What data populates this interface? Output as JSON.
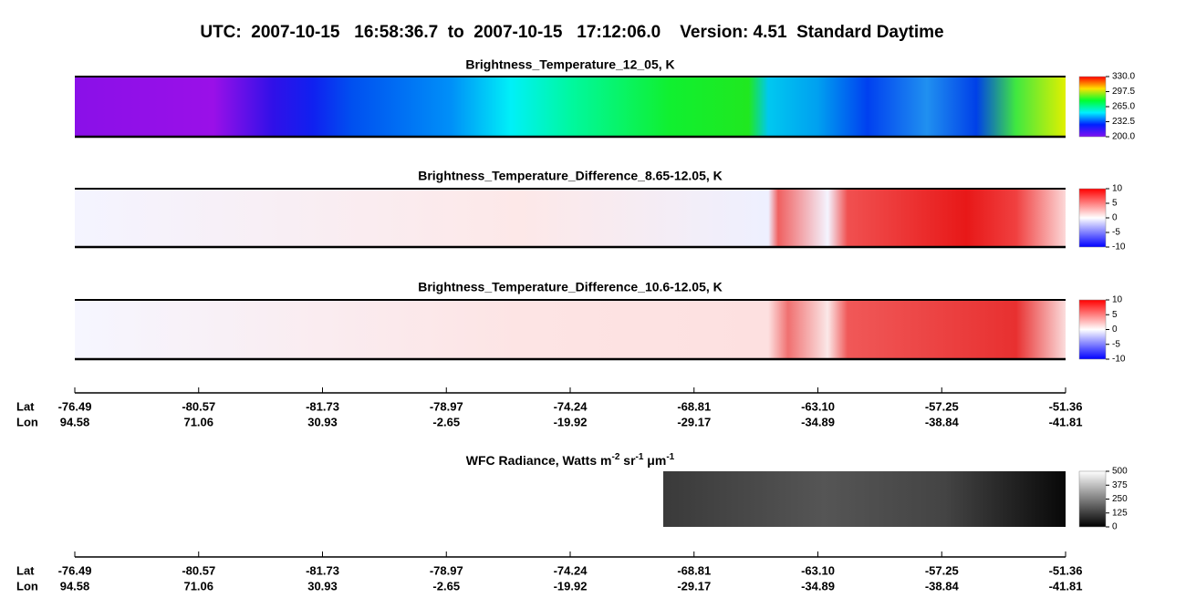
{
  "header": {
    "title": "UTC:  2007-10-15   16:58:36.7  to  2007-10-15   17:12:06.0    Version: 4.51  Standard Daytime"
  },
  "panels": [
    {
      "title": "Brightness_Temperature_12_05, K",
      "colorbar": [
        "330.0",
        "297.5",
        "265.0",
        "232.5",
        "200.0"
      ]
    },
    {
      "title": "Brightness_Temperature_Difference_8.65-12.05, K",
      "colorbar": [
        "10",
        "5",
        "0",
        "-5",
        "-10"
      ]
    },
    {
      "title": "Brightness_Temperature_Difference_10.6-12.05, K",
      "colorbar": [
        "10",
        "5",
        "0",
        "-5",
        "-10"
      ]
    },
    {
      "title": [
        "WFC Radiance, Watts m",
        "-2",
        " sr",
        "-1",
        " μm",
        "-1"
      ],
      "colorbar": [
        "500",
        "375",
        "250",
        "125",
        "0"
      ]
    }
  ],
  "axes": [
    {
      "lat_label": "Lat",
      "lon_label": "Lon",
      "lat": [
        "-76.49",
        "-80.57",
        "-81.73",
        "-78.97",
        "-74.24",
        "-68.81",
        "-63.10",
        "-57.25",
        "-51.36"
      ],
      "lon": [
        "94.58",
        "71.06",
        "30.93",
        "-2.65",
        "-19.92",
        "-29.17",
        "-34.89",
        "-38.84",
        "-41.81"
      ]
    },
    {
      "lat_label": "Lat",
      "lon_label": "Lon",
      "lat": [
        "-76.49",
        "-80.57",
        "-81.73",
        "-78.97",
        "-74.24",
        "-68.81",
        "-63.10",
        "-57.25",
        "-51.36"
      ],
      "lon": [
        "94.58",
        "71.06",
        "30.93",
        "-2.65",
        "-19.92",
        "-29.17",
        "-34.89",
        "-38.84",
        "-41.81"
      ]
    }
  ]
}
